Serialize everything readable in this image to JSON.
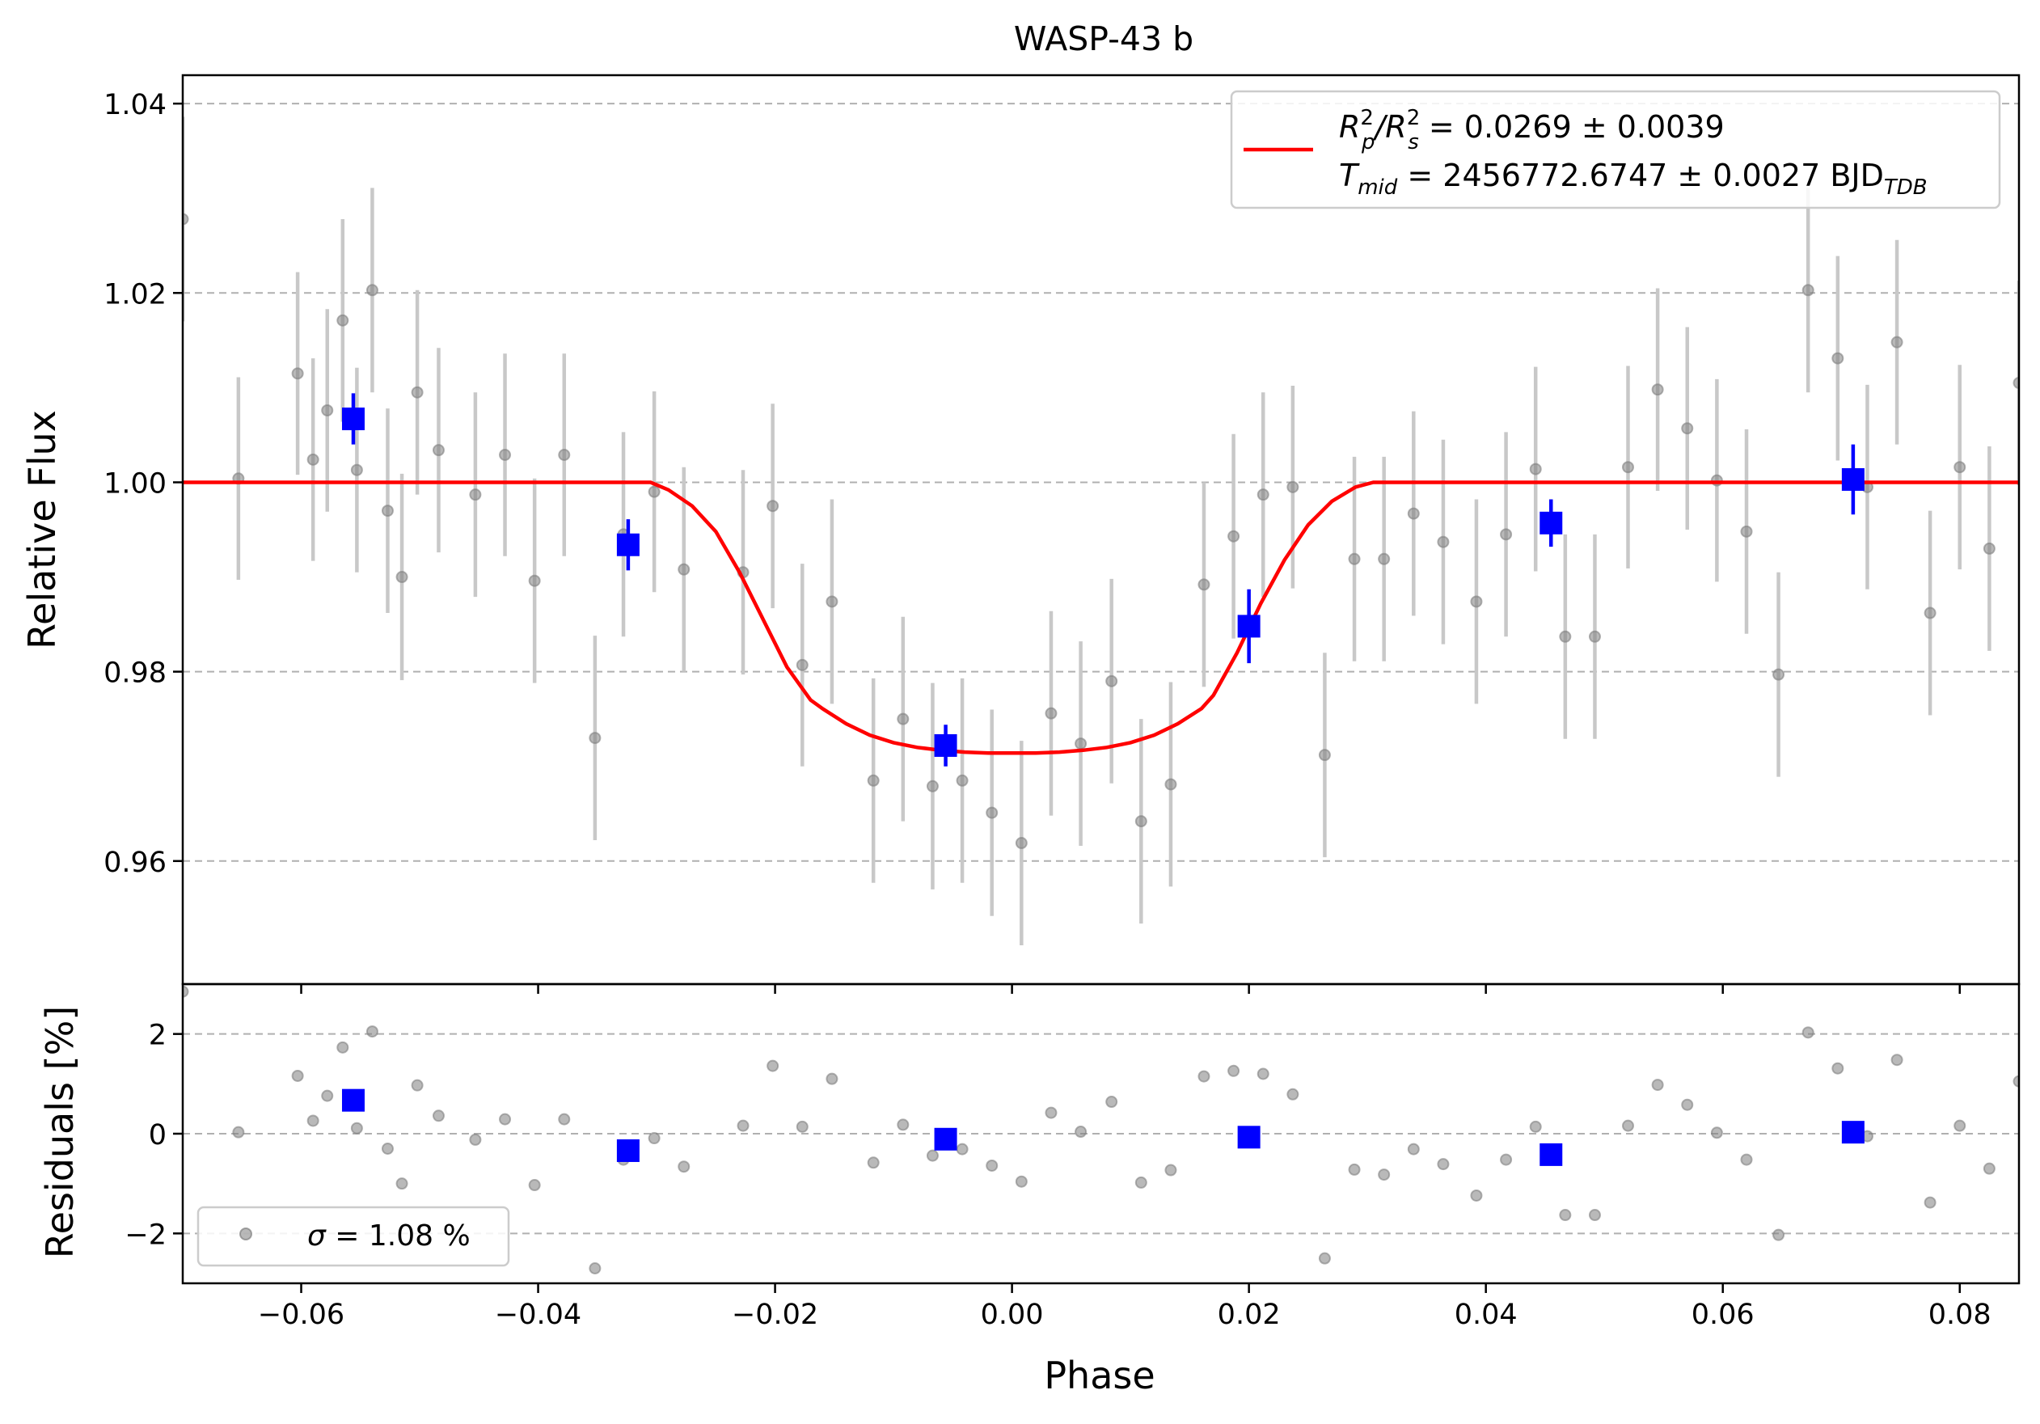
{
  "chart_data": [
    {
      "type": "scatter",
      "title": "WASP-43 b",
      "xlabel": "",
      "ylabel": "Relative Flux",
      "xlim": [
        -0.07,
        0.085
      ],
      "ylim": [
        0.947,
        1.043
      ],
      "grid": "horizontal dashed",
      "y_ticks": [
        {
          "value": 0.96,
          "label": "0.96"
        },
        {
          "value": 0.98,
          "label": "0.98"
        },
        {
          "value": 1.0,
          "label": "1.00"
        },
        {
          "value": 1.02,
          "label": "1.02"
        },
        {
          "value": 1.04,
          "label": "1.04"
        }
      ],
      "legend": {
        "placement": "top-right",
        "line1": {
          "base": "R",
          "sup1": "2",
          "sub1": "p",
          "slash": "/R",
          "sup2": "2",
          "sub2": "s",
          "rest": " = 0.0269 ± 0.0039"
        },
        "line2": {
          "base": "T",
          "sub": "mid",
          "rest": " = 2456772.6747 ± 0.0027 BJD",
          "unit_sub": "TDB"
        }
      },
      "colors": {
        "data": "#808080",
        "errorbar": "#c8c8c8",
        "binned": "#0000ff",
        "model": "#ff0000",
        "grid": "#b0b0b0"
      },
      "model": {
        "name": "transit model",
        "x": [
          -0.07,
          -0.0305,
          -0.029,
          -0.027,
          -0.025,
          -0.023,
          -0.021,
          -0.019,
          -0.017,
          -0.016,
          -0.014,
          -0.012,
          -0.01,
          -0.008,
          -0.006,
          -0.004,
          -0.002,
          0.0,
          0.002,
          0.004,
          0.006,
          0.008,
          0.01,
          0.012,
          0.014,
          0.016,
          0.017,
          0.019,
          0.021,
          0.023,
          0.025,
          0.027,
          0.029,
          0.0305,
          0.085
        ],
        "y": [
          1.0,
          1.0,
          0.9992,
          0.9975,
          0.9948,
          0.9905,
          0.9855,
          0.9805,
          0.977,
          0.9761,
          0.9745,
          0.9733,
          0.9725,
          0.972,
          0.9717,
          0.9715,
          0.9714,
          0.9714,
          0.9714,
          0.9715,
          0.9717,
          0.972,
          0.9725,
          0.9733,
          0.9745,
          0.9761,
          0.9775,
          0.982,
          0.9872,
          0.9918,
          0.9955,
          0.998,
          0.9995,
          1.0,
          1.0
        ]
      },
      "points": [
        {
          "x": -0.07,
          "y": 1.0278,
          "err": 0.0108
        },
        {
          "x": -0.0653,
          "y": 1.0004,
          "err": 0.0107
        },
        {
          "x": -0.0603,
          "y": 1.0115,
          "err": 0.0107
        },
        {
          "x": -0.059,
          "y": 1.0024,
          "err": 0.0107
        },
        {
          "x": -0.0578,
          "y": 1.0076,
          "err": 0.0107
        },
        {
          "x": -0.0565,
          "y": 1.0171,
          "err": 0.0107
        },
        {
          "x": -0.0553,
          "y": 1.0013,
          "err": 0.0108
        },
        {
          "x": -0.054,
          "y": 1.0203,
          "err": 0.0108
        },
        {
          "x": -0.0527,
          "y": 0.997,
          "err": 0.0108
        },
        {
          "x": -0.0515,
          "y": 0.99,
          "err": 0.0109
        },
        {
          "x": -0.0502,
          "y": 1.0095,
          "err": 0.0108
        },
        {
          "x": -0.0484,
          "y": 1.0034,
          "err": 0.0108
        },
        {
          "x": -0.0453,
          "y": 0.9987,
          "err": 0.0108
        },
        {
          "x": -0.0428,
          "y": 1.0029,
          "err": 0.0107
        },
        {
          "x": -0.0403,
          "y": 0.9896,
          "err": 0.0108
        },
        {
          "x": -0.0378,
          "y": 1.0029,
          "err": 0.0107
        },
        {
          "x": -0.0352,
          "y": 0.973,
          "err": 0.0108
        },
        {
          "x": -0.0328,
          "y": 0.9945,
          "err": 0.0108
        },
        {
          "x": -0.0302,
          "y": 0.999,
          "err": 0.0106
        },
        {
          "x": -0.0277,
          "y": 0.9908,
          "err": 0.0108
        },
        {
          "x": -0.0227,
          "y": 0.9905,
          "err": 0.0108
        },
        {
          "x": -0.0202,
          "y": 0.9975,
          "err": 0.0108
        },
        {
          "x": -0.0177,
          "y": 0.9807,
          "err": 0.0107
        },
        {
          "x": -0.0152,
          "y": 0.9874,
          "err": 0.0108
        },
        {
          "x": -0.0117,
          "y": 0.9685,
          "err": 0.0108
        },
        {
          "x": -0.0092,
          "y": 0.975,
          "err": 0.0108
        },
        {
          "x": -0.0067,
          "y": 0.9679,
          "err": 0.0109
        },
        {
          "x": -0.0042,
          "y": 0.9685,
          "err": 0.0108
        },
        {
          "x": -0.0017,
          "y": 0.9651,
          "err": 0.0109
        },
        {
          "x": 0.0008,
          "y": 0.9619,
          "err": 0.0108
        },
        {
          "x": 0.0033,
          "y": 0.9756,
          "err": 0.0108
        },
        {
          "x": 0.0058,
          "y": 0.9724,
          "err": 0.0108
        },
        {
          "x": 0.0084,
          "y": 0.979,
          "err": 0.0108
        },
        {
          "x": 0.0109,
          "y": 0.9642,
          "err": 0.0108
        },
        {
          "x": 0.0134,
          "y": 0.9681,
          "err": 0.0108
        },
        {
          "x": 0.0162,
          "y": 0.9892,
          "err": 0.0108
        },
        {
          "x": 0.0187,
          "y": 0.9943,
          "err": 0.0108
        },
        {
          "x": 0.0212,
          "y": 0.9987,
          "err": 0.0108
        },
        {
          "x": 0.0237,
          "y": 0.9995,
          "err": 0.0107
        },
        {
          "x": 0.0264,
          "y": 0.9712,
          "err": 0.0108
        },
        {
          "x": 0.0289,
          "y": 0.9919,
          "err": 0.0108
        },
        {
          "x": 0.0314,
          "y": 0.9919,
          "err": 0.0108
        },
        {
          "x": 0.0339,
          "y": 0.9967,
          "err": 0.0108
        },
        {
          "x": 0.0364,
          "y": 0.9937,
          "err": 0.0108
        },
        {
          "x": 0.0392,
          "y": 0.9874,
          "err": 0.0108
        },
        {
          "x": 0.0417,
          "y": 0.9945,
          "err": 0.0108
        },
        {
          "x": 0.0442,
          "y": 1.0014,
          "err": 0.0108
        },
        {
          "x": 0.0467,
          "y": 0.9837,
          "err": 0.0108
        },
        {
          "x": 0.0492,
          "y": 0.9837,
          "err": 0.0108
        },
        {
          "x": 0.052,
          "y": 1.0016,
          "err": 0.0107
        },
        {
          "x": 0.0545,
          "y": 1.0098,
          "err": 0.0107
        },
        {
          "x": 0.057,
          "y": 1.0057,
          "err": 0.0107
        },
        {
          "x": 0.0595,
          "y": 1.0002,
          "err": 0.0107
        },
        {
          "x": 0.062,
          "y": 0.9948,
          "err": 0.0108
        },
        {
          "x": 0.0647,
          "y": 0.9797,
          "err": 0.0108
        },
        {
          "x": 0.0672,
          "y": 1.0203,
          "err": 0.0108
        },
        {
          "x": 0.0697,
          "y": 1.0131,
          "err": 0.0108
        },
        {
          "x": 0.0722,
          "y": 0.9995,
          "err": 0.0108
        },
        {
          "x": 0.0747,
          "y": 1.0148,
          "err": 0.0108
        },
        {
          "x": 0.0775,
          "y": 0.9862,
          "err": 0.0108
        },
        {
          "x": 0.08,
          "y": 1.0016,
          "err": 0.0108
        },
        {
          "x": 0.0825,
          "y": 0.993,
          "err": 0.0108
        },
        {
          "x": 0.085,
          "y": 1.0105,
          "err": 0.0108
        }
      ],
      "binned": [
        {
          "x": -0.0556,
          "y": 1.0067,
          "err": 0.0027
        },
        {
          "x": -0.0324,
          "y": 0.9934,
          "err": 0.0027
        },
        {
          "x": -0.0056,
          "y": 0.9722,
          "err": 0.0022
        },
        {
          "x": 0.02,
          "y": 0.9848,
          "err": 0.0039
        },
        {
          "x": 0.0455,
          "y": 0.9957,
          "err": 0.0025
        },
        {
          "x": 0.071,
          "y": 1.0003,
          "err": 0.0037
        }
      ]
    },
    {
      "type": "scatter",
      "title": "",
      "xlabel": "Phase",
      "ylabel": "Residuals [%]",
      "xlim": [
        -0.07,
        0.085
      ],
      "ylim": [
        -3.0,
        3.0
      ],
      "grid": "horizontal dashed",
      "x_ticks": [
        {
          "value": -0.06,
          "label": "−0.06"
        },
        {
          "value": -0.04,
          "label": "−0.04"
        },
        {
          "value": -0.02,
          "label": "−0.02"
        },
        {
          "value": 0.0,
          "label": "0.00"
        },
        {
          "value": 0.02,
          "label": "0.02"
        },
        {
          "value": 0.04,
          "label": "0.04"
        },
        {
          "value": 0.06,
          "label": "0.06"
        },
        {
          "value": 0.08,
          "label": "0.08"
        }
      ],
      "y_ticks": [
        {
          "value": -2,
          "label": "−2"
        },
        {
          "value": 0,
          "label": "0"
        },
        {
          "value": 2,
          "label": "2"
        }
      ],
      "legend": {
        "placement": "bottom-left",
        "sigma_symbol": "σ",
        "text": " = 1.08 %"
      },
      "points": [
        {
          "x": -0.07,
          "y": 2.85
        },
        {
          "x": -0.0653,
          "y": 0.03
        },
        {
          "x": -0.0603,
          "y": 1.16
        },
        {
          "x": -0.059,
          "y": 0.26
        },
        {
          "x": -0.0578,
          "y": 0.76
        },
        {
          "x": -0.0565,
          "y": 1.73
        },
        {
          "x": -0.0553,
          "y": 0.11
        },
        {
          "x": -0.054,
          "y": 2.05
        },
        {
          "x": -0.0527,
          "y": -0.3
        },
        {
          "x": -0.0515,
          "y": -1.0
        },
        {
          "x": -0.0502,
          "y": 0.97
        },
        {
          "x": -0.0484,
          "y": 0.36
        },
        {
          "x": -0.0453,
          "y": -0.12
        },
        {
          "x": -0.0428,
          "y": 0.29
        },
        {
          "x": -0.0403,
          "y": -1.03
        },
        {
          "x": -0.0378,
          "y": 0.29
        },
        {
          "x": -0.0352,
          "y": -2.7
        },
        {
          "x": -0.0328,
          "y": -0.52
        },
        {
          "x": -0.0302,
          "y": -0.09
        },
        {
          "x": -0.0277,
          "y": -0.66
        },
        {
          "x": -0.0227,
          "y": 0.16
        },
        {
          "x": -0.0202,
          "y": 1.36
        },
        {
          "x": -0.0177,
          "y": 0.14
        },
        {
          "x": -0.0152,
          "y": 1.1
        },
        {
          "x": -0.0117,
          "y": -0.58
        },
        {
          "x": -0.0092,
          "y": 0.18
        },
        {
          "x": -0.0067,
          "y": -0.44
        },
        {
          "x": -0.0042,
          "y": -0.31
        },
        {
          "x": -0.0017,
          "y": -0.64
        },
        {
          "x": 0.0008,
          "y": -0.96
        },
        {
          "x": 0.0033,
          "y": 0.42
        },
        {
          "x": 0.0058,
          "y": 0.04
        },
        {
          "x": 0.0084,
          "y": 0.64
        },
        {
          "x": 0.0109,
          "y": -0.98
        },
        {
          "x": 0.0134,
          "y": -0.73
        },
        {
          "x": 0.0162,
          "y": 1.15
        },
        {
          "x": 0.0187,
          "y": 1.26
        },
        {
          "x": 0.0212,
          "y": 1.2
        },
        {
          "x": 0.0237,
          "y": 0.79
        },
        {
          "x": 0.0264,
          "y": -2.5
        },
        {
          "x": 0.0289,
          "y": -0.72
        },
        {
          "x": 0.0314,
          "y": -0.82
        },
        {
          "x": 0.0339,
          "y": -0.31
        },
        {
          "x": 0.0364,
          "y": -0.61
        },
        {
          "x": 0.0392,
          "y": -1.24
        },
        {
          "x": 0.0417,
          "y": -0.52
        },
        {
          "x": 0.0442,
          "y": 0.14
        },
        {
          "x": 0.0467,
          "y": -1.63
        },
        {
          "x": 0.0492,
          "y": -1.63
        },
        {
          "x": 0.052,
          "y": 0.16
        },
        {
          "x": 0.0545,
          "y": 0.98
        },
        {
          "x": 0.057,
          "y": 0.58
        },
        {
          "x": 0.0595,
          "y": 0.02
        },
        {
          "x": 0.062,
          "y": -0.52
        },
        {
          "x": 0.0647,
          "y": -2.03
        },
        {
          "x": 0.0672,
          "y": 2.03
        },
        {
          "x": 0.0697,
          "y": 1.31
        },
        {
          "x": 0.0722,
          "y": -0.05
        },
        {
          "x": 0.0747,
          "y": 1.48
        },
        {
          "x": 0.0775,
          "y": -1.38
        },
        {
          "x": 0.08,
          "y": 0.16
        },
        {
          "x": 0.0825,
          "y": -0.7
        },
        {
          "x": 0.085,
          "y": 1.05
        }
      ],
      "binned": [
        {
          "x": -0.0556,
          "y": 0.67
        },
        {
          "x": -0.0324,
          "y": -0.34
        },
        {
          "x": -0.0056,
          "y": -0.11
        },
        {
          "x": 0.02,
          "y": -0.07
        },
        {
          "x": 0.0455,
          "y": -0.42
        },
        {
          "x": 0.071,
          "y": 0.03
        }
      ]
    }
  ]
}
